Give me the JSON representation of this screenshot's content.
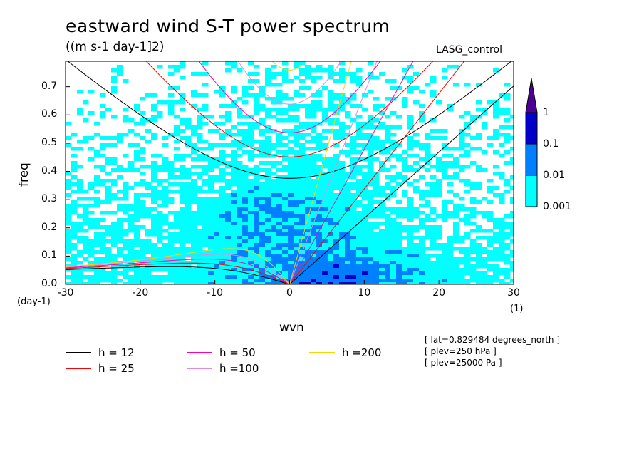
{
  "header": {
    "title": "eastward wind S-T power spectrum",
    "units": "((m s-1 day-1]2)",
    "experiment": "LASG_control"
  },
  "axes": {
    "ylabel": "freq",
    "xlabel": "wvn",
    "y_unit": "(day-1)",
    "x_unit": "(1)",
    "xticks": [
      "-30",
      "-20",
      "-10",
      "0",
      "10",
      "20",
      "30"
    ],
    "yticks": [
      "0.0",
      "0.1",
      "0.2",
      "0.3",
      "0.4",
      "0.5",
      "0.6",
      "0.7"
    ]
  },
  "colorbar": {
    "levels": [
      "0.001",
      "0.01",
      "0.1",
      "1"
    ],
    "colors": [
      "#00ffff",
      "#0080ff",
      "#0000c8",
      "#4b0096"
    ]
  },
  "legend": [
    {
      "label": "h = 12",
      "color": "#000000"
    },
    {
      "label": "h = 25",
      "color": "#ff0000"
    },
    {
      "label": "h = 50",
      "color": "#ff00b4"
    },
    {
      "label": "h =100",
      "color": "#e08ce0"
    },
    {
      "label": "h =200",
      "color": "#ffd200"
    }
  ],
  "metadata": [
    "[ lat=0.829484 degrees_north ]",
    "[ plev=250 hPa ]",
    "[ plev=25000 Pa ]"
  ],
  "chart_data": {
    "type": "heatmap",
    "title": "eastward wind S-T power spectrum",
    "subtitle": "((m s-1 day-1]2)",
    "xlabel": "wvn",
    "ylabel": "freq",
    "xlim": [
      -30,
      30
    ],
    "ylim": [
      0,
      0.79
    ],
    "color_scale": "log",
    "contour_levels": [
      0.001,
      0.01,
      0.1,
      1
    ],
    "level_colors": [
      "#00ffff",
      "#0080ff",
      "#0000c8",
      "#4b0096"
    ],
    "regions": [
      {
        "level": 0.1,
        "description": "low-frequency band near wvn 0 to 10, freq 0 to 0.15"
      },
      {
        "level": 0.01,
        "description": "broad band around wvn -10 to 15, freq 0 to 0.4"
      }
    ],
    "dispersion_curves": {
      "equivalent_depths": [
        12,
        25,
        50,
        100,
        200
      ],
      "colors": [
        "#000000",
        "#ff0000",
        "#ff00b4",
        "#e08ce0",
        "#ffd200"
      ]
    },
    "grid": false
  }
}
